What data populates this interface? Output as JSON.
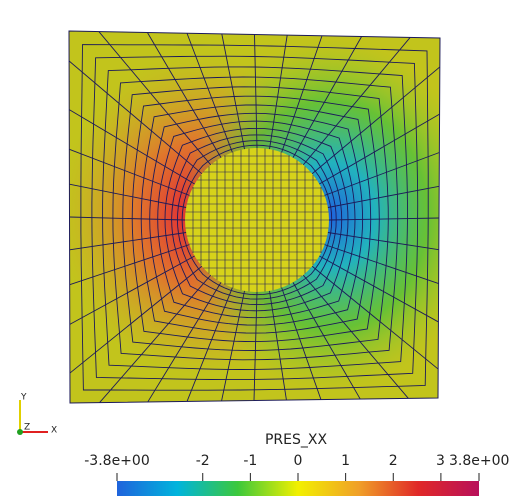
{
  "chart_data": {
    "type": "colorbar",
    "title": "PRES_XX",
    "xlim": [
      -3.8,
      3.8
    ],
    "xticks": [
      {
        "value": -3.8,
        "label": "-3.8e+00"
      },
      -2,
      -1,
      0,
      1,
      2,
      3,
      {
        "value": 3.8,
        "label": "3.8e+00"
      }
    ],
    "colors": [
      "#1f63dc",
      "#00b4dc",
      "#3cc83c",
      "#f2f000",
      "#f0a028",
      "#e02828",
      "#b8105a"
    ]
  },
  "axes_triad": {
    "labels": [
      "Y",
      "Z",
      "X"
    ]
  }
}
